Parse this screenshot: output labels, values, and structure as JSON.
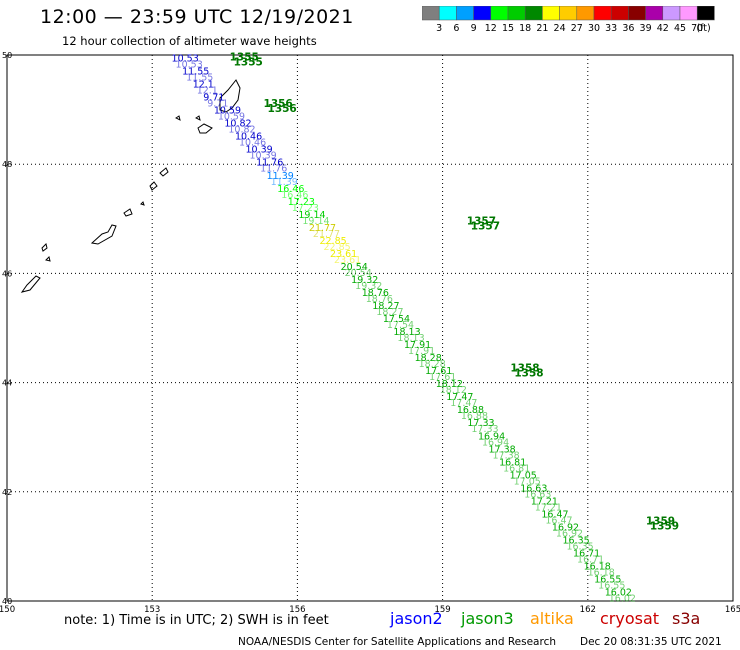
{
  "header": {
    "title": "12:00 — 23:59 UTC 12/19/2021",
    "subtitle": "12 hour collection of altimeter wave heights"
  },
  "colorbar": {
    "unit_label": "(ft)",
    "ticks": [
      "3",
      "6",
      "9",
      "12",
      "15",
      "18",
      "21",
      "24",
      "27",
      "30",
      "33",
      "36",
      "39",
      "42",
      "45",
      "70"
    ],
    "colors": [
      "#7f7f7f",
      "#00ffff",
      "#00a0ff",
      "#0000ff",
      "#00ff00",
      "#00cc00",
      "#008800",
      "#ffff00",
      "#ffcc00",
      "#ff9900",
      "#ff0000",
      "#cc0000",
      "#880000",
      "#aa00aa",
      "#cc99ff",
      "#ff99ff",
      "#000000"
    ]
  },
  "axes": {
    "lon_labels": [
      "150",
      "153",
      "156",
      "159",
      "162",
      "165"
    ],
    "lat_labels": [
      "50",
      "48",
      "46",
      "44",
      "42",
      "40"
    ],
    "lon_range": [
      150,
      165
    ],
    "lat_range": [
      40,
      50
    ]
  },
  "passes": [
    {
      "label": "1355",
      "satellite": "jason3",
      "lon": 154.6,
      "lat": 49.9
    },
    {
      "label": "1356",
      "satellite": "jason3",
      "lon": 155.3,
      "lat": 49.05
    },
    {
      "label": "1357",
      "satellite": "jason3",
      "lon": 159.5,
      "lat": 46.9
    },
    {
      "label": "1358",
      "satellite": "jason3",
      "lon": 160.4,
      "lat": 44.2
    },
    {
      "label": "1359",
      "satellite": "jason3",
      "lon": 163.2,
      "lat": 41.4
    }
  ],
  "track_values": [
    {
      "v": "10.53",
      "c": "#0000cc"
    },
    {
      "v": "11.55",
      "c": "#0000cc"
    },
    {
      "v": "12.1",
      "c": "#0000cc"
    },
    {
      "v": "9.71",
      "c": "#0000cc"
    },
    {
      "v": "10.59",
      "c": "#0000cc"
    },
    {
      "v": "10.82",
      "c": "#0000cc"
    },
    {
      "v": "10.46",
      "c": "#0000cc"
    },
    {
      "v": "10.39",
      "c": "#0000cc"
    },
    {
      "v": "11.76",
      "c": "#0000cc"
    },
    {
      "v": "11.39",
      "c": "#0080ff"
    },
    {
      "v": "16.46",
      "c": "#00ff00"
    },
    {
      "v": "17.23",
      "c": "#00ff00"
    },
    {
      "v": "19.14",
      "c": "#00cc00"
    },
    {
      "v": "21.77",
      "c": "#cccc00"
    },
    {
      "v": "22.85",
      "c": "#eeee00"
    },
    {
      "v": "23.61",
      "c": "#eeee00"
    },
    {
      "v": "20.54",
      "c": "#00aa00"
    },
    {
      "v": "19.32",
      "c": "#00aa00"
    },
    {
      "v": "18.76",
      "c": "#00aa00"
    },
    {
      "v": "18.27",
      "c": "#00aa00"
    },
    {
      "v": "17.54",
      "c": "#00aa00"
    },
    {
      "v": "18.13",
      "c": "#00aa00"
    },
    {
      "v": "17.91",
      "c": "#00aa00"
    },
    {
      "v": "18.28",
      "c": "#00aa00"
    },
    {
      "v": "17.61",
      "c": "#00aa00"
    },
    {
      "v": "18.12",
      "c": "#00aa00"
    },
    {
      "v": "17.47",
      "c": "#00aa00"
    },
    {
      "v": "16.88",
      "c": "#00aa00"
    },
    {
      "v": "17.33",
      "c": "#00aa00"
    },
    {
      "v": "16.94",
      "c": "#00aa00"
    },
    {
      "v": "17.38",
      "c": "#00aa00"
    },
    {
      "v": "16.81",
      "c": "#00aa00"
    },
    {
      "v": "17.05",
      "c": "#00aa00"
    },
    {
      "v": "16.63",
      "c": "#00aa00"
    },
    {
      "v": "17.21",
      "c": "#00aa00"
    },
    {
      "v": "16.47",
      "c": "#00aa00"
    },
    {
      "v": "16.92",
      "c": "#00aa00"
    },
    {
      "v": "16.35",
      "c": "#00aa00"
    },
    {
      "v": "16.71",
      "c": "#00aa00"
    },
    {
      "v": "16.18",
      "c": "#00aa00"
    },
    {
      "v": "16.55",
      "c": "#00aa00"
    },
    {
      "v": "16.02",
      "c": "#00aa00"
    }
  ],
  "footer": {
    "note": "note:  1) Time is in UTC;  2) SWH is in feet",
    "satellites": [
      {
        "name": "jason2",
        "color": "#0000ff"
      },
      {
        "name": "jason3",
        "color": "#009900"
      },
      {
        "name": "altika",
        "color": "#ff9900"
      },
      {
        "name": "cryosat",
        "color": "#cc0000"
      },
      {
        "name": "s3a",
        "color": "#880000"
      }
    ],
    "credit": "NOAA/NESDIS Center for Satellite Applications and Research",
    "created": "Dec 20 08:31:35 UTC 2021"
  }
}
